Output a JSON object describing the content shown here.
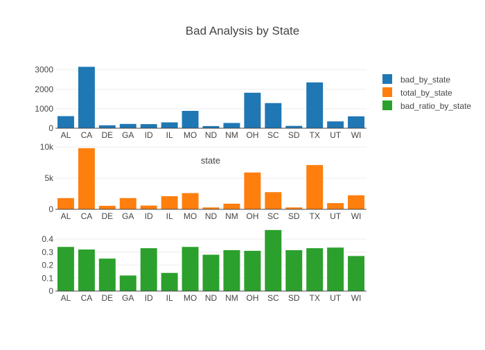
{
  "chart_data": {
    "type": "bar",
    "title": "Bad Analysis by State",
    "annotation": "state",
    "categories": [
      "AL",
      "CA",
      "DE",
      "GA",
      "ID",
      "IL",
      "MO",
      "ND",
      "NM",
      "OH",
      "SC",
      "SD",
      "TX",
      "UT",
      "WI"
    ],
    "legend_position": "top-right",
    "grid": true,
    "subplots": [
      {
        "name": "bad_by_state",
        "color": "#1f77b4",
        "values": [
          620,
          3150,
          150,
          220,
          210,
          300,
          890,
          110,
          270,
          1820,
          1290,
          120,
          2350,
          350,
          610
        ],
        "ylim": [
          0,
          3200
        ],
        "tick_values": [
          0,
          1000,
          2000,
          3000
        ],
        "tick_labels": [
          "0",
          "1000",
          "2000",
          "3000"
        ]
      },
      {
        "name": "total_by_state",
        "color": "#ff7f0e",
        "values": [
          1800,
          9800,
          560,
          1800,
          600,
          2100,
          2600,
          300,
          900,
          5900,
          2750,
          300,
          7100,
          1000,
          2250
        ],
        "ylim": [
          0,
          10000
        ],
        "tick_values": [
          0,
          5000,
          10000
        ],
        "tick_labels": [
          "0",
          "5k",
          "10k"
        ]
      },
      {
        "name": "bad_ratio_by_state",
        "color": "#2ca02c",
        "values": [
          0.34,
          0.32,
          0.25,
          0.12,
          0.33,
          0.14,
          0.34,
          0.28,
          0.315,
          0.31,
          0.47,
          0.315,
          0.33,
          0.335,
          0.27
        ],
        "ylim": [
          0,
          0.48
        ],
        "tick_values": [
          0,
          0.1,
          0.2,
          0.3,
          0.4
        ],
        "tick_labels": [
          "0",
          "0.1",
          "0.2",
          "0.3",
          "0.4"
        ]
      }
    ],
    "legend": [
      "bad_by_state",
      "total_by_state",
      "bad_ratio_by_state"
    ]
  }
}
